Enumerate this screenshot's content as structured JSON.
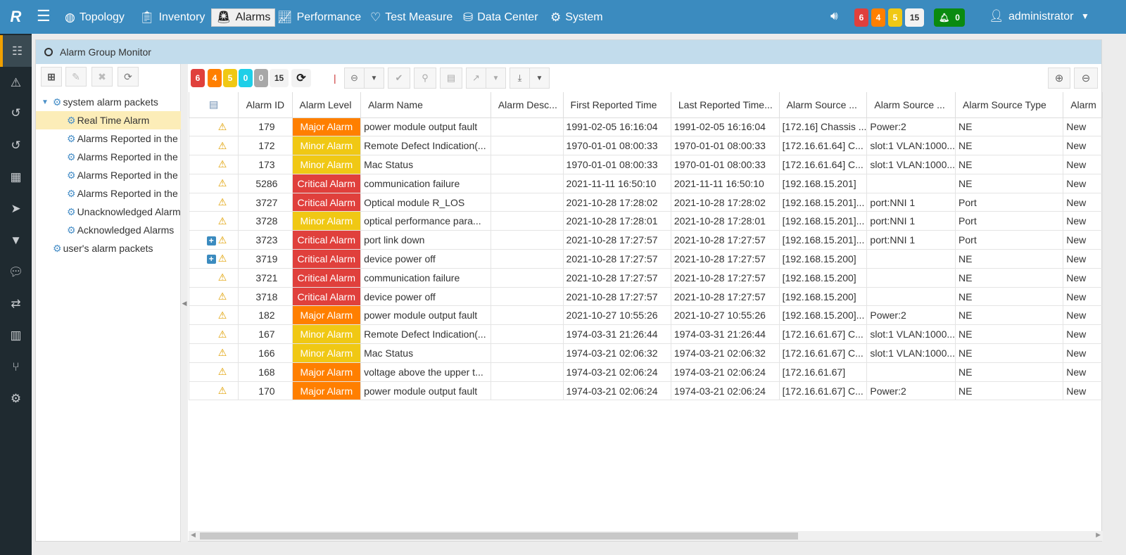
{
  "topbar": {
    "logo": "R",
    "nav": [
      {
        "label": "Topology",
        "icon": "globe-icon"
      },
      {
        "label": "Inventory",
        "icon": "clipboard-icon"
      },
      {
        "label": "Alarms",
        "icon": "siren-icon",
        "active": true
      },
      {
        "label": "Performance",
        "icon": "chart-line-icon"
      },
      {
        "label": "Test Measure",
        "icon": "heartbeat-icon"
      },
      {
        "label": "Data Center",
        "icon": "database-icon"
      },
      {
        "label": "System",
        "icon": "gear-icon"
      }
    ],
    "counts": {
      "critical": "6",
      "major": "4",
      "minor": "5",
      "total": "15"
    },
    "notifications": "0",
    "user": "administrator"
  },
  "colors": {
    "critical": "#e0403c",
    "major": "#ff7f00",
    "minor": "#f0c814",
    "warning": "#1ecfe8",
    "info": "#a8a8a8",
    "topbar": "#3b8bbf",
    "leftbar": "#1f2a30"
  },
  "panel": {
    "title": "Alarm Group Monitor"
  },
  "tree": {
    "root1": "system alarm packets",
    "items": [
      "Real Time Alarm",
      "Alarms Reported in the",
      "Alarms Reported in the",
      "Alarms Reported in the",
      "Alarms Reported in the",
      "Unacknowledged Alarm",
      "Acknowledged Alarms"
    ],
    "root2": "user's alarm packets"
  },
  "toolbar": {
    "counts": [
      "6",
      "4",
      "5",
      "0",
      "0",
      "15"
    ]
  },
  "table": {
    "columns": [
      "Alarm ID",
      "Alarm Level",
      "Alarm Name",
      "Alarm Desc...",
      "First Reported Time",
      "Last Reported Time...",
      "Alarm Source ...",
      "Alarm Source ...",
      "Alarm Source Type",
      "Alarm"
    ],
    "rows": [
      {
        "expand": false,
        "id": "179",
        "level": "Major Alarm",
        "sev": "major",
        "name": "power module output fault",
        "desc": "",
        "first": "1991-02-05 16:16:04",
        "last": "1991-02-05 16:16:04",
        "src1": "[172.16] Chassis ...",
        "src2": "Power:2",
        "type": "NE",
        "status": "New"
      },
      {
        "expand": false,
        "id": "172",
        "level": "Minor Alarm",
        "sev": "minor",
        "name": "Remote Defect Indication(...",
        "desc": "",
        "first": "1970-01-01 08:00:33",
        "last": "1970-01-01 08:00:33",
        "src1": "[172.16.61.64] C...",
        "src2": "slot:1 VLAN:1000...",
        "type": "NE",
        "status": "New"
      },
      {
        "expand": false,
        "id": "173",
        "level": "Minor Alarm",
        "sev": "minor",
        "name": "Mac Status",
        "desc": "",
        "first": "1970-01-01 08:00:33",
        "last": "1970-01-01 08:00:33",
        "src1": "[172.16.61.64] C...",
        "src2": "slot:1 VLAN:1000...",
        "type": "NE",
        "status": "New"
      },
      {
        "expand": false,
        "id": "5286",
        "level": "Critical Alarm",
        "sev": "critical",
        "name": "communication failure",
        "desc": "",
        "first": "2021-11-11 16:50:10",
        "last": "2021-11-11 16:50:10",
        "src1": "[192.168.15.201]",
        "src2": "",
        "type": "NE",
        "status": "New"
      },
      {
        "expand": false,
        "id": "3727",
        "level": "Critical Alarm",
        "sev": "critical",
        "name": "Optical module R_LOS",
        "desc": "",
        "first": "2021-10-28 17:28:02",
        "last": "2021-10-28 17:28:02",
        "src1": "[192.168.15.201]...",
        "src2": "port:NNI 1",
        "type": "Port",
        "status": "New"
      },
      {
        "expand": false,
        "id": "3728",
        "level": "Minor Alarm",
        "sev": "minor",
        "name": "optical performance para...",
        "desc": "",
        "first": "2021-10-28 17:28:01",
        "last": "2021-10-28 17:28:01",
        "src1": "[192.168.15.201]...",
        "src2": "port:NNI 1",
        "type": "Port",
        "status": "New"
      },
      {
        "expand": true,
        "id": "3723",
        "level": "Critical Alarm",
        "sev": "critical",
        "name": "port link down",
        "desc": "",
        "first": "2021-10-28 17:27:57",
        "last": "2021-10-28 17:27:57",
        "src1": "[192.168.15.201]...",
        "src2": "port:NNI 1",
        "type": "Port",
        "status": "New"
      },
      {
        "expand": true,
        "id": "3719",
        "level": "Critical Alarm",
        "sev": "critical",
        "name": "device power off",
        "desc": "",
        "first": "2021-10-28 17:27:57",
        "last": "2021-10-28 17:27:57",
        "src1": "[192.168.15.200]",
        "src2": "",
        "type": "NE",
        "status": "New"
      },
      {
        "expand": false,
        "id": "3721",
        "level": "Critical Alarm",
        "sev": "critical",
        "name": "communication failure",
        "desc": "",
        "first": "2021-10-28 17:27:57",
        "last": "2021-10-28 17:27:57",
        "src1": "[192.168.15.200]",
        "src2": "",
        "type": "NE",
        "status": "New"
      },
      {
        "expand": false,
        "id": "3718",
        "level": "Critical Alarm",
        "sev": "critical",
        "name": "device power off",
        "desc": "",
        "first": "2021-10-28 17:27:57",
        "last": "2021-10-28 17:27:57",
        "src1": "[192.168.15.200]",
        "src2": "",
        "type": "NE",
        "status": "New"
      },
      {
        "expand": false,
        "id": "182",
        "level": "Major Alarm",
        "sev": "major",
        "name": "power module output fault",
        "desc": "",
        "first": "2021-10-27 10:55:26",
        "last": "2021-10-27 10:55:26",
        "src1": "[192.168.15.200]...",
        "src2": "Power:2",
        "type": "NE",
        "status": "New"
      },
      {
        "expand": false,
        "id": "167",
        "level": "Minor Alarm",
        "sev": "minor",
        "name": "Remote Defect Indication(...",
        "desc": "",
        "first": "1974-03-31 21:26:44",
        "last": "1974-03-31 21:26:44",
        "src1": "[172.16.61.67] C...",
        "src2": "slot:1 VLAN:1000...",
        "type": "NE",
        "status": "New"
      },
      {
        "expand": false,
        "id": "166",
        "level": "Minor Alarm",
        "sev": "minor",
        "name": "Mac Status",
        "desc": "",
        "first": "1974-03-21 02:06:32",
        "last": "1974-03-21 02:06:32",
        "src1": "[172.16.61.67] C...",
        "src2": "slot:1 VLAN:1000...",
        "type": "NE",
        "status": "New"
      },
      {
        "expand": false,
        "id": "168",
        "level": "Major Alarm",
        "sev": "major",
        "name": "voltage above the upper t...",
        "desc": "",
        "first": "1974-03-21 02:06:24",
        "last": "1974-03-21 02:06:24",
        "src1": "[172.16.61.67]",
        "src2": "",
        "type": "NE",
        "status": "New"
      },
      {
        "expand": false,
        "id": "170",
        "level": "Major Alarm",
        "sev": "major",
        "name": "power module output fault",
        "desc": "",
        "first": "1974-03-21 02:06:24",
        "last": "1974-03-21 02:06:24",
        "src1": "[172.16.61.67] C...",
        "src2": "Power:2",
        "type": "NE",
        "status": "New"
      }
    ]
  }
}
